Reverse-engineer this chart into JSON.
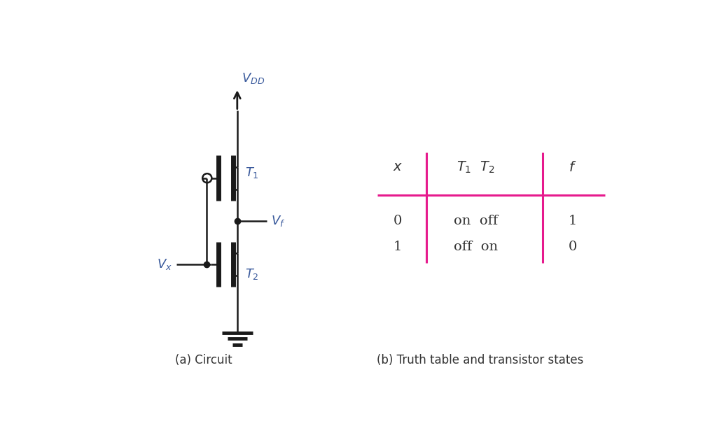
{
  "bg_color": "#ffffff",
  "line_color": "#1a1a1a",
  "pink_color": "#e61a8d",
  "text_color_dark": "#333333",
  "text_color_blue": "#3a5a9c",
  "fig_width": 10.24,
  "fig_height": 6.02,
  "caption_a": "(a) Circuit",
  "caption_b": "(b) Truth table and transistor states"
}
